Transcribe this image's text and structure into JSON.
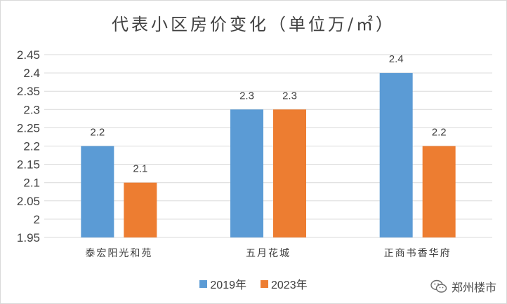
{
  "chart_data": {
    "type": "bar",
    "title": "代表小区房价变化（单位万/㎡）",
    "categories": [
      "泰宏阳光和苑",
      "五月花城",
      "正商书香华府"
    ],
    "series": [
      {
        "name": "2019年",
        "color": "#5b9bd5",
        "values": [
          2.2,
          2.3,
          2.4
        ]
      },
      {
        "name": "2023年",
        "color": "#ed7d31",
        "values": [
          2.1,
          2.3,
          2.2
        ]
      }
    ],
    "ylim": [
      1.95,
      2.45
    ],
    "yticks": [
      "1.95",
      "2",
      "2.05",
      "2.1",
      "2.15",
      "2.2",
      "2.25",
      "2.3",
      "2.35",
      "2.4",
      "2.45"
    ],
    "grid": true,
    "legend": "bottom",
    "xlabel": "",
    "ylabel": ""
  },
  "watermark": {
    "text": "郑州楼市",
    "icon": "wechat-icon"
  }
}
